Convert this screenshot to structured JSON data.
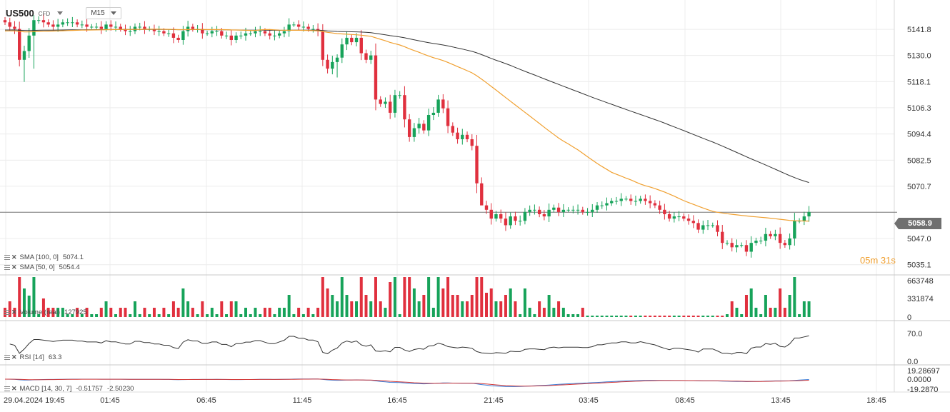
{
  "header": {
    "symbol": "US500",
    "instrument_type": "CFD",
    "timeframe": "M15"
  },
  "indicators": {
    "sma100": {
      "label": "SMA [100, 0]",
      "value": "5074.1",
      "color": "#333333"
    },
    "sma50": {
      "label": "SMA [50, 0]",
      "value": "5054.4",
      "color": "#f0a030"
    },
    "volume": {
      "label": "Volume (real)",
      "value": "127925"
    },
    "rsi": {
      "label": "RSI [14]",
      "value": "63.3"
    },
    "macd": {
      "label": "MACD [14, 30, 7]",
      "value1": "-0.51757",
      "value2": "-2.50230"
    }
  },
  "timer": {
    "minutes": "05",
    "seconds": "31"
  },
  "current_price": "5058.9",
  "colors": {
    "up": "#17a35a",
    "down": "#e0303e",
    "grid": "#ececec",
    "axis_text": "#333333"
  },
  "chart_data": {
    "type": "candlestick",
    "price_axis": {
      "ticks": [
        "5141.8",
        "5130.0",
        "5118.1",
        "5106.3",
        "5094.4",
        "5082.5",
        "5070.7",
        "5058.9",
        "5047.0",
        "5035.1"
      ],
      "range": [
        5035.1,
        5141.8
      ]
    },
    "volume_axis": {
      "ticks": [
        "663748",
        "331874",
        "0"
      ]
    },
    "rsi_axis": {
      "ticks": [
        "70.0",
        "0.0"
      ]
    },
    "macd_axis": {
      "ticks": [
        "19.28697",
        "0.0000",
        "-19.2870"
      ]
    },
    "time_axis": [
      "29.04.2024 19:45",
      "01:45",
      "06:45",
      "11:45",
      "16:45",
      "21:45",
      "03:45",
      "08:45",
      "13:45",
      "18:45"
    ],
    "closes": [
      5145,
      5143,
      5142,
      5128,
      5132,
      5139,
      5146,
      5146,
      5145,
      5144,
      5143,
      5144,
      5145,
      5145,
      5145,
      5144,
      5144,
      5143,
      5143,
      5143,
      5142,
      5144,
      5143,
      5143,
      5142,
      5141,
      5141,
      5143,
      5143,
      5142,
      5142,
      5141,
      5141,
      5140,
      5140,
      5138,
      5137,
      5141,
      5143,
      5142,
      5142,
      5140,
      5140,
      5141,
      5141,
      5139,
      5139,
      5137,
      5139,
      5139,
      5140,
      5140,
      5141,
      5141,
      5140,
      5139,
      5139,
      5140,
      5141,
      5144,
      5144,
      5143,
      5143,
      5142,
      5142,
      5141,
      5128,
      5124,
      5127,
      5129,
      5135,
      5138,
      5136,
      5138,
      5131,
      5128,
      5130,
      5110,
      5108,
      5109,
      5104,
      5112,
      5112,
      5101,
      5093,
      5097,
      5099,
      5096,
      5103,
      5104,
      5110,
      5106,
      5098,
      5095,
      5092,
      5094,
      5092,
      5089,
      5072,
      5062,
      5060,
      5056,
      5058,
      5056,
      5053,
      5057,
      5055,
      5055,
      5059,
      5060,
      5060,
      5058,
      5057,
      5060,
      5061,
      5059,
      5060,
      5060,
      5060,
      5060,
      5059,
      5059,
      5060,
      5062,
      5062,
      5063,
      5064,
      5064,
      5065,
      5065,
      5064,
      5064,
      5065,
      5064,
      5063,
      5062,
      5060,
      5058,
      5056,
      5057,
      5057,
      5056,
      5055,
      5054,
      5051,
      5053,
      5053,
      5053,
      5050,
      5045,
      5045,
      5043,
      5044,
      5044,
      5041,
      5045,
      5046,
      5046,
      5049,
      5048,
      5049,
      5045,
      5044,
      5047,
      5055,
      5055,
      5057,
      5059
    ]
  }
}
